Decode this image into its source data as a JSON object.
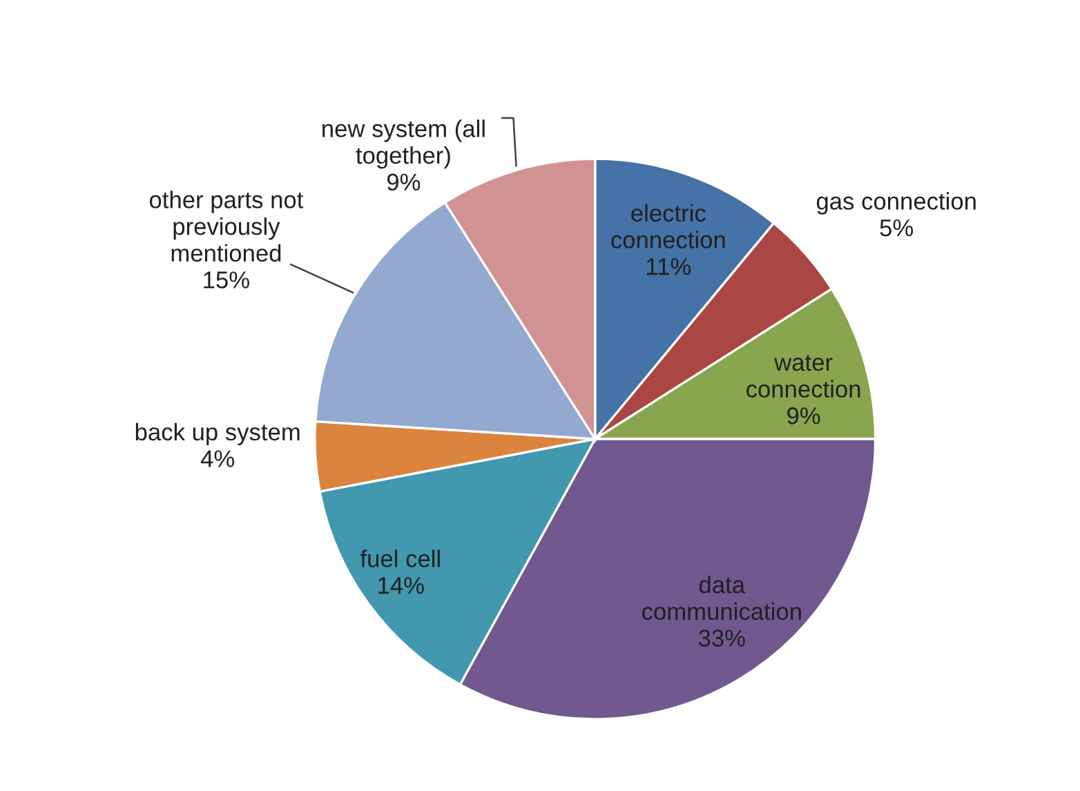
{
  "chart_data": {
    "type": "pie",
    "categories": [
      "electric\nconnection",
      "gas connection",
      "water\nconnection",
      "data\ncommunication",
      "fuel cell",
      "back up system",
      "other parts not\npreviously\nmentioned",
      "new system (all\ntogether)"
    ],
    "values": [
      11,
      5,
      9,
      33,
      14,
      4,
      15,
      9
    ],
    "value_labels": [
      "11%",
      "5%",
      "9%",
      "33%",
      "14%",
      "4%",
      "15%",
      "9%"
    ],
    "colors": [
      "#4572a7",
      "#aa4643",
      "#89a54e",
      "#71588f",
      "#4198af",
      "#db843d",
      "#93a9cf",
      "#d19392"
    ],
    "legend": false
  }
}
